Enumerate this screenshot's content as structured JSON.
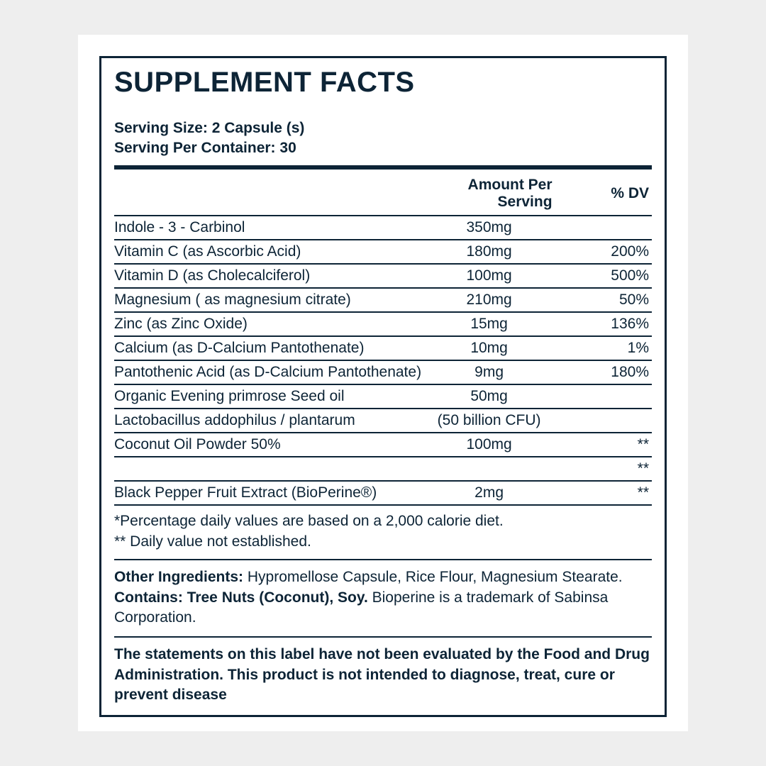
{
  "title": "SUPPLEMENT FACTS",
  "serving_size": "Serving Size: 2 Capsule (s)",
  "serving_per_container": "Serving Per Container: 30",
  "header_amount": "Amount Per Serving",
  "header_dv": "% DV",
  "rows": [
    {
      "name": "Indole - 3  - Carbinol",
      "amount": "350mg",
      "dv": ""
    },
    {
      "name": "Vitamin C  (as Ascorbic Acid)",
      "amount": "180mg",
      "dv": "200%"
    },
    {
      "name": "Vitamin D  (as Cholecalciferol)",
      "amount": "100mg",
      "dv": "500%"
    },
    {
      "name": "Magnesium ( as magnesium citrate)",
      "amount": "210mg",
      "dv": "50%"
    },
    {
      "name": "Zinc  (as Zinc Oxide)",
      "amount": "15mg",
      "dv": "136%"
    },
    {
      "name": "Calcium  (as D-Calcium Pantothenate)",
      "amount": "10mg",
      "dv": "1%"
    },
    {
      "name": "Pantothenic Acid  (as D-Calcium Pantothenate)",
      "amount": "9mg",
      "dv": "180%"
    },
    {
      "name": "Organic Evening primrose Seed oil",
      "amount": "50mg",
      "dv": ""
    },
    {
      "name": "Lactobacillus addophilus / plantarum",
      "amount": "(50 billion CFU)",
      "dv": ""
    },
    {
      "name": "Coconut Oil Powder 50%",
      "amount": "100mg",
      "dv": "**"
    },
    {
      "name": "",
      "amount": "",
      "dv": "**"
    },
    {
      "name": "Black Pepper Fruit Extract  (BioPerine®)",
      "amount": "2mg",
      "dv": "**"
    }
  ],
  "footnote_line1": "*Percentage daily values are based on a 2,000 calorie diet.",
  "footnote_line2": "** Daily value not established.",
  "other_label": "Other Ingredients: ",
  "other_text": "Hypromellose Capsule, Rice Flour, Magnesium Stearate. ",
  "contains_label": "Contains: Tree Nuts (Coconut), Soy. ",
  "trademark_text": "Bioperine is a trademark of Sabinsa Corporation.",
  "disclaimer": "The statements on this label have not been evaluated by the Food and Drug Administration. This product is not intended to diagnose, treat, cure or prevent disease",
  "colors": {
    "page_bg": "#eeeeee",
    "card_bg": "#ffffff",
    "ink": "#0d2436"
  }
}
